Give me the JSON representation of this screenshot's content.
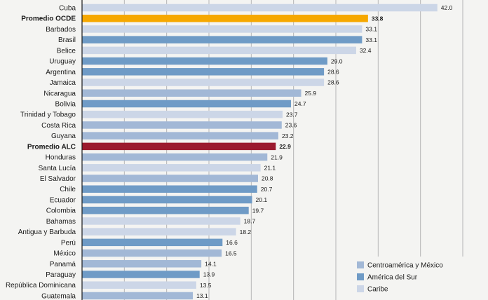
{
  "chart_data": {
    "type": "bar",
    "orientation": "horizontal",
    "xlim": [
      0,
      45
    ],
    "grid": true,
    "grid_step": 5,
    "legend_position": "bottom-right",
    "categories": [
      "Cuba",
      "Promedio OCDE",
      "Barbados",
      "Brasil",
      "Belice",
      "Uruguay",
      "Argentina",
      "Jamaica",
      "Nicaragua",
      "Bolivia",
      "Trinidad y Tobago",
      "Costa Rica",
      "Guyana",
      "Promedio ALC",
      "Honduras",
      "Santa Lucía",
      "El Salvador",
      "Chile",
      "Ecuador",
      "Colombia",
      "Bahamas",
      "Antigua y Barbuda",
      "Perú",
      "México",
      "Panamá",
      "Paraguay",
      "República Dominicana",
      "Guatemala"
    ],
    "values": [
      42.0,
      33.8,
      33.1,
      33.1,
      32.4,
      29.0,
      28.6,
      28.6,
      25.9,
      24.7,
      23.7,
      23.6,
      23.2,
      22.9,
      21.9,
      21.1,
      20.8,
      20.7,
      20.1,
      19.7,
      18.7,
      18.2,
      16.6,
      16.5,
      14.1,
      13.9,
      13.5,
      13.1
    ],
    "value_labels": [
      "42.0",
      "33.8",
      "33.1",
      "33.1",
      "32.4",
      "29.0",
      "28.6",
      "28.6",
      "25.9",
      "24.7",
      "23.7",
      "23.6",
      "23.2",
      "22.9",
      "21.9",
      "21.1",
      "20.8",
      "20.7",
      "20.1",
      "19.7",
      "18.7",
      "18.2",
      "16.6",
      "16.5",
      "14.1",
      "13.9",
      "13.5",
      "13.1"
    ],
    "groups": [
      "caribe",
      "ocde",
      "caribe",
      "sur",
      "caribe",
      "sur",
      "sur",
      "caribe",
      "centro",
      "sur",
      "caribe",
      "centro",
      "centro",
      "alc",
      "centro",
      "caribe",
      "centro",
      "sur",
      "sur",
      "sur",
      "caribe",
      "caribe",
      "sur",
      "centro",
      "centro",
      "sur",
      "caribe",
      "centro"
    ],
    "highlight": [
      "Promedio OCDE",
      "Promedio ALC"
    ],
    "colors": {
      "centro": "#a2b8d6",
      "sur": "#6f9bc6",
      "caribe": "#ccd6e7",
      "ocde": "#f6a800",
      "alc": "#9b1a2e"
    },
    "legend": [
      {
        "key": "centro",
        "label": "Centroamérica y México"
      },
      {
        "key": "sur",
        "label": "América del Sur"
      },
      {
        "key": "caribe",
        "label": "Caribe"
      }
    ]
  }
}
